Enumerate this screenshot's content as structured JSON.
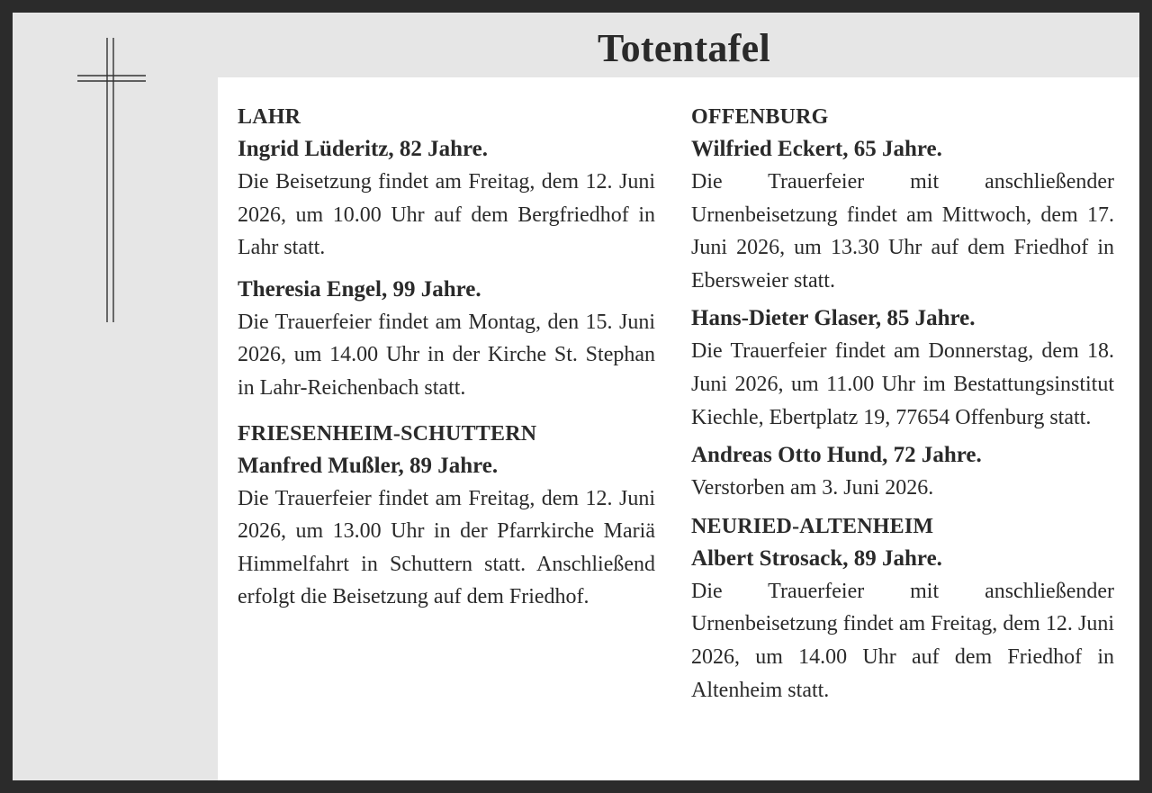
{
  "header": {
    "title": "Totentafel"
  },
  "left": {
    "sections": [
      {
        "place": "LAHR",
        "entries": [
          {
            "name": "Ingrid Lüderitz, 82 Jahre.",
            "text": "Die Beisetzung findet am Freitag, dem 12. Juni 2026, um 10.00 Uhr auf dem Bergfriedhof in Lahr statt."
          },
          {
            "name": "Theresia Engel, 99 Jahre.",
            "text": "Die Trauerfeier findet am Montag, den 15. Juni 2026, um 14.00 Uhr in der Kirche St. Stephan in Lahr-Reichen­bach statt."
          }
        ]
      },
      {
        "place": "FRIESENHEIM-SCHUTTERN",
        "entries": [
          {
            "name": "Manfred Mußler, 89 Jahre.",
            "text": "Die Trauerfeier findet am Freitag, dem 12. Juni 2026, um 13.00 Uhr in der Pfarrkirche Mariä Himmel­fahrt in Schuttern statt. Anschließend erfolgt die Beisetzung auf dem Fried­hof."
          }
        ]
      }
    ]
  },
  "right": {
    "sections": [
      {
        "place": "OFFENBURG",
        "entries": [
          {
            "name": "Wilfried Eckert, 65 Jahre.",
            "text": "Die Trauerfeier mit anschließender Urnenbeisetzung findet am Mittwoch, dem 17. Juni 2026, um 13.30 Uhr auf dem Friedhof in Ebersweier statt."
          },
          {
            "name": "Hans-Dieter Glaser, 85 Jahre.",
            "text": "Die Trauerfeier findet am Donnerstag, dem 18. Juni 2026, um 11.00 Uhr im Bestattungsinstitut Kiechle, Ebertplatz 19, 77654 Offenburg statt."
          },
          {
            "name": "Andreas Otto Hund, 72 Jahre.",
            "text": "Verstorben am 3. Juni 2026."
          }
        ]
      },
      {
        "place": "NEURIED-ALTENHEIM",
        "entries": [
          {
            "name": "Albert Strosack, 89 Jahre.",
            "text": "Die Trauerfeier mit anschließender Urnenbeisetzung findet am Freitag, dem 12. Juni 2026, um 14.00 Uhr auf dem Friedhof in Altenheim statt."
          }
        ]
      }
    ]
  },
  "decor": {
    "cross_icon": "cross-icon",
    "line_color": "#333333"
  }
}
